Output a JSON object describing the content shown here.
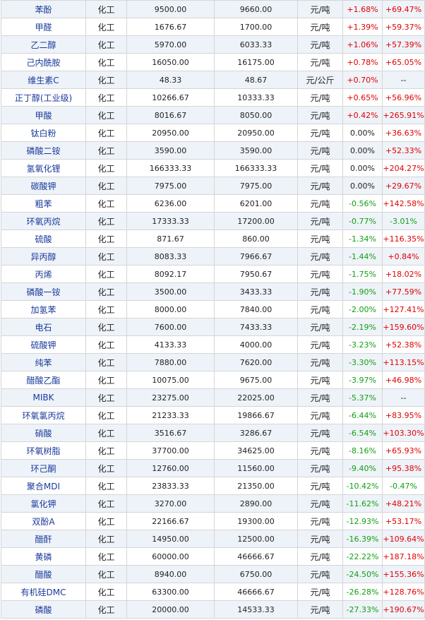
{
  "rows": [
    {
      "name": "苯酚",
      "cat": "化工",
      "p1": "9500.00",
      "p2": "9660.00",
      "unit": "元/吨",
      "chg": "+1.68%",
      "yr": "+69.47%"
    },
    {
      "name": "甲醛",
      "cat": "化工",
      "p1": "1676.67",
      "p2": "1700.00",
      "unit": "元/吨",
      "chg": "+1.39%",
      "yr": "+59.37%"
    },
    {
      "name": "乙二醇",
      "cat": "化工",
      "p1": "5970.00",
      "p2": "6033.33",
      "unit": "元/吨",
      "chg": "+1.06%",
      "yr": "+57.39%"
    },
    {
      "name": "己内酰胺",
      "cat": "化工",
      "p1": "16050.00",
      "p2": "16175.00",
      "unit": "元/吨",
      "chg": "+0.78%",
      "yr": "+65.05%"
    },
    {
      "name": "维生素C",
      "cat": "化工",
      "p1": "48.33",
      "p2": "48.67",
      "unit": "元/公斤",
      "chg": "+0.70%",
      "yr": "--"
    },
    {
      "name": "正丁醇(工业级)",
      "cat": "化工",
      "p1": "10266.67",
      "p2": "10333.33",
      "unit": "元/吨",
      "chg": "+0.65%",
      "yr": "+56.96%"
    },
    {
      "name": "甲酸",
      "cat": "化工",
      "p1": "8016.67",
      "p2": "8050.00",
      "unit": "元/吨",
      "chg": "+0.42%",
      "yr": "+265.91%"
    },
    {
      "name": "钛白粉",
      "cat": "化工",
      "p1": "20950.00",
      "p2": "20950.00",
      "unit": "元/吨",
      "chg": "0.00%",
      "yr": "+36.63%"
    },
    {
      "name": "磷酸二铵",
      "cat": "化工",
      "p1": "3590.00",
      "p2": "3590.00",
      "unit": "元/吨",
      "chg": "0.00%",
      "yr": "+52.33%"
    },
    {
      "name": "氢氧化锂",
      "cat": "化工",
      "p1": "166333.33",
      "p2": "166333.33",
      "unit": "元/吨",
      "chg": "0.00%",
      "yr": "+204.27%"
    },
    {
      "name": "碳酸钾",
      "cat": "化工",
      "p1": "7975.00",
      "p2": "7975.00",
      "unit": "元/吨",
      "chg": "0.00%",
      "yr": "+29.67%"
    },
    {
      "name": "粗苯",
      "cat": "化工",
      "p1": "6236.00",
      "p2": "6201.00",
      "unit": "元/吨",
      "chg": "-0.56%",
      "yr": "+142.58%"
    },
    {
      "name": "环氧丙烷",
      "cat": "化工",
      "p1": "17333.33",
      "p2": "17200.00",
      "unit": "元/吨",
      "chg": "-0.77%",
      "yr": "-3.01%"
    },
    {
      "name": "硫酸",
      "cat": "化工",
      "p1": "871.67",
      "p2": "860.00",
      "unit": "元/吨",
      "chg": "-1.34%",
      "yr": "+116.35%"
    },
    {
      "name": "异丙醇",
      "cat": "化工",
      "p1": "8083.33",
      "p2": "7966.67",
      "unit": "元/吨",
      "chg": "-1.44%",
      "yr": "+0.84%"
    },
    {
      "name": "丙烯",
      "cat": "化工",
      "p1": "8092.17",
      "p2": "7950.67",
      "unit": "元/吨",
      "chg": "-1.75%",
      "yr": "+18.02%"
    },
    {
      "name": "磷酸一铵",
      "cat": "化工",
      "p1": "3500.00",
      "p2": "3433.33",
      "unit": "元/吨",
      "chg": "-1.90%",
      "yr": "+77.59%"
    },
    {
      "name": "加氢苯",
      "cat": "化工",
      "p1": "8000.00",
      "p2": "7840.00",
      "unit": "元/吨",
      "chg": "-2.00%",
      "yr": "+127.41%"
    },
    {
      "name": "电石",
      "cat": "化工",
      "p1": "7600.00",
      "p2": "7433.33",
      "unit": "元/吨",
      "chg": "-2.19%",
      "yr": "+159.60%"
    },
    {
      "name": "硫酸钾",
      "cat": "化工",
      "p1": "4133.33",
      "p2": "4000.00",
      "unit": "元/吨",
      "chg": "-3.23%",
      "yr": "+52.38%"
    },
    {
      "name": "纯苯",
      "cat": "化工",
      "p1": "7880.00",
      "p2": "7620.00",
      "unit": "元/吨",
      "chg": "-3.30%",
      "yr": "+113.15%"
    },
    {
      "name": "醋酸乙酯",
      "cat": "化工",
      "p1": "10075.00",
      "p2": "9675.00",
      "unit": "元/吨",
      "chg": "-3.97%",
      "yr": "+46.98%"
    },
    {
      "name": "MIBK",
      "cat": "化工",
      "p1": "23275.00",
      "p2": "22025.00",
      "unit": "元/吨",
      "chg": "-5.37%",
      "yr": "--"
    },
    {
      "name": "环氧氯丙烷",
      "cat": "化工",
      "p1": "21233.33",
      "p2": "19866.67",
      "unit": "元/吨",
      "chg": "-6.44%",
      "yr": "+83.95%"
    },
    {
      "name": "硝酸",
      "cat": "化工",
      "p1": "3516.67",
      "p2": "3286.67",
      "unit": "元/吨",
      "chg": "-6.54%",
      "yr": "+103.30%"
    },
    {
      "name": "环氧树脂",
      "cat": "化工",
      "p1": "37700.00",
      "p2": "34625.00",
      "unit": "元/吨",
      "chg": "-8.16%",
      "yr": "+65.93%"
    },
    {
      "name": "环己酮",
      "cat": "化工",
      "p1": "12760.00",
      "p2": "11560.00",
      "unit": "元/吨",
      "chg": "-9.40%",
      "yr": "+95.38%"
    },
    {
      "name": "聚合MDI",
      "cat": "化工",
      "p1": "23833.33",
      "p2": "21350.00",
      "unit": "元/吨",
      "chg": "-10.42%",
      "yr": "-0.47%"
    },
    {
      "name": "氯化钾",
      "cat": "化工",
      "p1": "3270.00",
      "p2": "2890.00",
      "unit": "元/吨",
      "chg": "-11.62%",
      "yr": "+48.21%"
    },
    {
      "name": "双酚A",
      "cat": "化工",
      "p1": "22166.67",
      "p2": "19300.00",
      "unit": "元/吨",
      "chg": "-12.93%",
      "yr": "+53.17%"
    },
    {
      "name": "醋酐",
      "cat": "化工",
      "p1": "14950.00",
      "p2": "12500.00",
      "unit": "元/吨",
      "chg": "-16.39%",
      "yr": "+109.64%"
    },
    {
      "name": "黄磷",
      "cat": "化工",
      "p1": "60000.00",
      "p2": "46666.67",
      "unit": "元/吨",
      "chg": "-22.22%",
      "yr": "+187.18%"
    },
    {
      "name": "醋酸",
      "cat": "化工",
      "p1": "8940.00",
      "p2": "6750.00",
      "unit": "元/吨",
      "chg": "-24.50%",
      "yr": "+155.36%"
    },
    {
      "name": "有机硅DMC",
      "cat": "化工",
      "p1": "63300.00",
      "p2": "46666.67",
      "unit": "元/吨",
      "chg": "-26.28%",
      "yr": "+128.76%"
    },
    {
      "name": "磷酸",
      "cat": "化工",
      "p1": "20000.00",
      "p2": "14533.33",
      "unit": "元/吨",
      "chg": "-27.33%",
      "yr": "+190.67%"
    }
  ],
  "colors": {
    "up": "#e00000",
    "down": "#129f12",
    "name": "#1a3a9a",
    "row_alt": "#eef3f9"
  }
}
